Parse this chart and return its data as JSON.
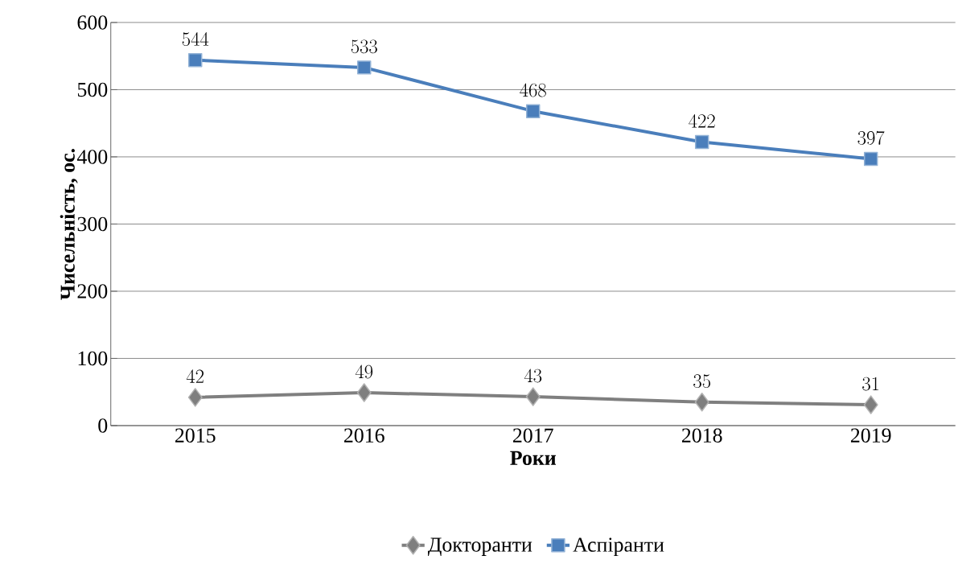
{
  "chart_data": {
    "type": "line",
    "xlabel": "Роки",
    "ylabel": "Чисельність, ос.",
    "categories": [
      "2015",
      "2016",
      "2017",
      "2018",
      "2019"
    ],
    "series": [
      {
        "name": "Докторанти",
        "color": "#7f7f7f",
        "marker": "diamond",
        "values": [
          42,
          49,
          43,
          35,
          31
        ]
      },
      {
        "name": "Аспіранти",
        "color": "#4a7ebb",
        "marker": "square",
        "values": [
          544,
          533,
          468,
          422,
          397
        ]
      }
    ],
    "ylim": [
      0,
      600
    ],
    "yticks": [
      0,
      100,
      200,
      300,
      400,
      500,
      600
    ],
    "grid": "y",
    "legend": "bottom",
    "data_labels": true,
    "line_style": "solid"
  }
}
